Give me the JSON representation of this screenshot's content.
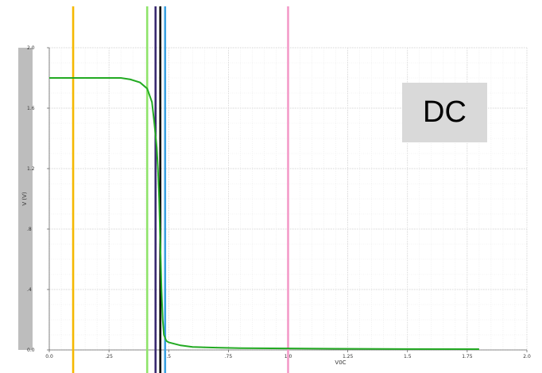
{
  "chart_data": {
    "type": "line",
    "xlabel": "V0C",
    "ylabel": "V (V)",
    "xlim": [
      0.0,
      2.0
    ],
    "ylim": [
      0.0,
      2.0
    ],
    "x_ticks": [
      "0.0",
      ".25",
      ".5",
      ".75",
      "1.0",
      "1.25",
      "1.5",
      "1.75",
      "2.0"
    ],
    "x_tick_values": [
      0.0,
      0.25,
      0.5,
      0.75,
      1.0,
      1.25,
      1.5,
      1.75,
      2.0
    ],
    "y_ticks": [
      "0.0",
      ".4",
      ".8",
      "1.2",
      "1.6",
      "2.0"
    ],
    "y_tick_values": [
      0.0,
      0.4,
      0.8,
      1.2,
      1.6,
      2.0
    ],
    "grid": true,
    "series": [
      {
        "color": "#22aa22",
        "x": [
          0.0,
          0.1,
          0.2,
          0.3,
          0.34,
          0.38,
          0.41,
          0.43,
          0.44,
          0.45,
          0.455,
          0.46,
          0.465,
          0.47,
          0.475,
          0.48,
          0.49,
          0.5,
          0.55,
          0.6,
          0.7,
          0.8,
          1.0,
          1.2,
          1.5,
          1.8
        ],
        "y": [
          1.8,
          1.8,
          1.8,
          1.8,
          1.79,
          1.77,
          1.73,
          1.64,
          1.5,
          1.34,
          1.2,
          1.0,
          0.7,
          0.4,
          0.2,
          0.1,
          0.06,
          0.05,
          0.03,
          0.02,
          0.015,
          0.012,
          0.01,
          0.008,
          0.006,
          0.005
        ]
      }
    ],
    "markers": [
      {
        "x": 0.1,
        "color": "#f5b800"
      },
      {
        "x": 0.41,
        "color": "#8fe36a"
      },
      {
        "x": 0.445,
        "color": "#3a2a70"
      },
      {
        "x": 0.465,
        "color": "#000000"
      },
      {
        "x": 0.485,
        "color": "#3aa0e0"
      },
      {
        "x": 1.0,
        "color": "#f39ac8"
      }
    ],
    "annotation": "DC"
  }
}
